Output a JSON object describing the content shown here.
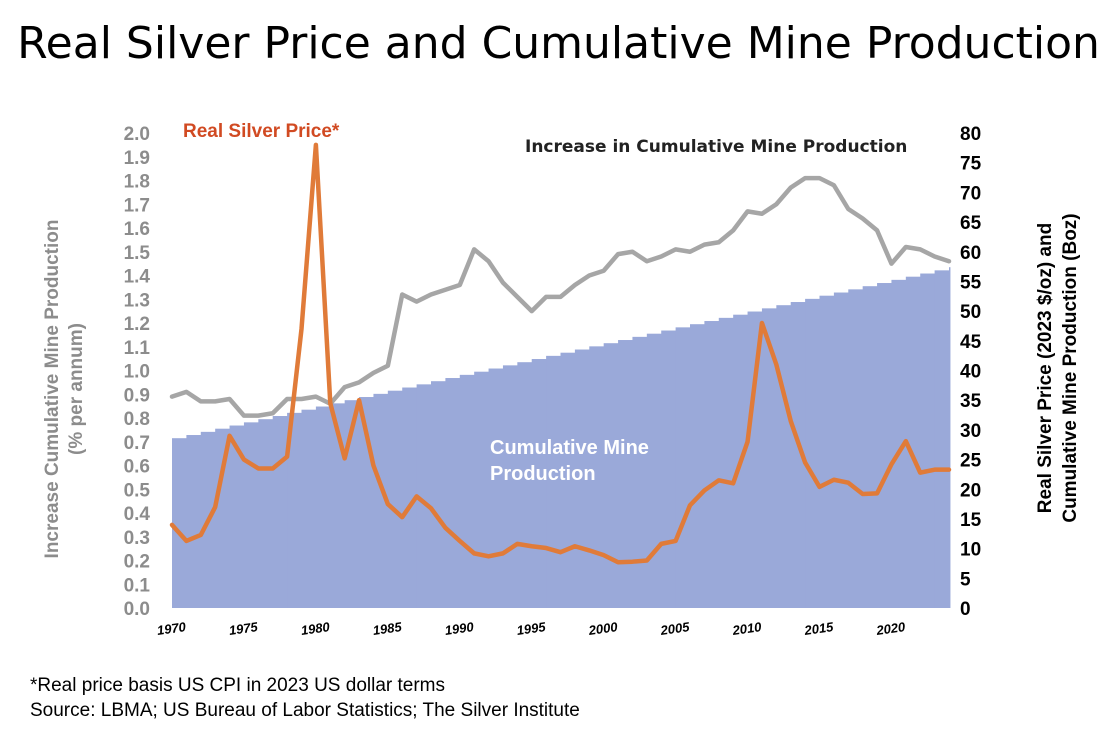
{
  "chart_data": {
    "type": "line",
    "title": "Real Silver Price and Cumulative Mine Production",
    "left_axis": {
      "label_line1": "Increase Cumulative Mine Production",
      "label_line2": "(% per annum)",
      "ylim": [
        0,
        2.0
      ],
      "ticks": [
        "0.0",
        "0.1",
        "0.2",
        "0.3",
        "0.4",
        "0.5",
        "0.6",
        "0.7",
        "0.8",
        "0.9",
        "1.0",
        "1.1",
        "1.2",
        "1.3",
        "1.4",
        "1.5",
        "1.6",
        "1.7",
        "1.8",
        "1.9",
        "2.0"
      ]
    },
    "right_axis": {
      "label_line1": "Real Silver Price (2023 $/oz) and",
      "label_line2": "Cumulative Mine Production (Boz)",
      "ylim": [
        0,
        80
      ],
      "ticks": [
        "0",
        "5",
        "10",
        "15",
        "20",
        "25",
        "30",
        "35",
        "40",
        "45",
        "50",
        "55",
        "60",
        "65",
        "70",
        "75",
        "80"
      ]
    },
    "x_tick_labels": [
      "1970",
      "1975",
      "1980",
      "1985",
      "1990",
      "1995",
      "2000",
      "2005",
      "2010",
      "2015",
      "2020"
    ],
    "years": [
      1970,
      1971,
      1972,
      1973,
      1974,
      1975,
      1976,
      1977,
      1978,
      1979,
      1980,
      1981,
      1982,
      1983,
      1984,
      1985,
      1986,
      1987,
      1988,
      1989,
      1990,
      1991,
      1992,
      1993,
      1994,
      1995,
      1996,
      1997,
      1998,
      1999,
      2000,
      2001,
      2002,
      2003,
      2004,
      2005,
      2006,
      2007,
      2008,
      2009,
      2010,
      2011,
      2012,
      2013,
      2014,
      2015,
      2016,
      2017,
      2018,
      2019,
      2020,
      2021,
      2022,
      2023,
      2024
    ],
    "series": [
      {
        "name": "Increase in Cumulative Mine Production",
        "axis": "left",
        "style": "line",
        "color": "#A6A6A6",
        "values": [
          0.89,
          0.91,
          0.87,
          0.87,
          0.88,
          0.81,
          0.81,
          0.82,
          0.88,
          0.88,
          0.89,
          0.86,
          0.93,
          0.95,
          0.99,
          1.02,
          1.32,
          1.29,
          1.32,
          1.34,
          1.36,
          1.51,
          1.46,
          1.37,
          1.31,
          1.25,
          1.31,
          1.31,
          1.36,
          1.4,
          1.42,
          1.49,
          1.5,
          1.46,
          1.48,
          1.51,
          1.5,
          1.53,
          1.54,
          1.59,
          1.67,
          1.66,
          1.7,
          1.77,
          1.81,
          1.81,
          1.78,
          1.68,
          1.64,
          1.59,
          1.45,
          1.52,
          1.51,
          1.48,
          1.46
        ]
      },
      {
        "name": "Real Silver Price*",
        "axis": "right",
        "style": "line",
        "color": "#E07B39",
        "values": [
          14,
          11.3,
          12.3,
          17,
          29,
          25,
          23.5,
          23.5,
          25.5,
          47,
          78,
          34.5,
          25.2,
          35,
          24,
          17.5,
          15.3,
          18.8,
          16.8,
          13.5,
          11.3,
          9.2,
          8.7,
          9.2,
          10.8,
          10.4,
          10.1,
          9.4,
          10.4,
          9.7,
          8.9,
          7.7,
          7.8,
          8,
          10.8,
          11.3,
          17.3,
          19.8,
          21.5,
          21,
          28,
          48,
          41,
          31.5,
          24.5,
          20.4,
          21.6,
          21.1,
          19.2,
          19.3,
          24.2,
          28.1,
          22.8,
          23.3,
          23.3
        ]
      },
      {
        "name": "Cumulative Mine Production",
        "axis": "right",
        "style": "area",
        "color": "#9AA9D9",
        "start": 28.6,
        "end": 57.4
      }
    ],
    "annotations": {
      "price_label": "Real Silver Price*",
      "production_increase_label": "Increase in Cumulative Mine Production",
      "area_label_line1": "Cumulative Mine",
      "area_label_line2": "Production"
    }
  },
  "footnote": "*Real price basis US CPI in 2023 US dollar terms",
  "source": "Source: LBMA; US Bureau of Labor Statistics; The Silver Institute"
}
